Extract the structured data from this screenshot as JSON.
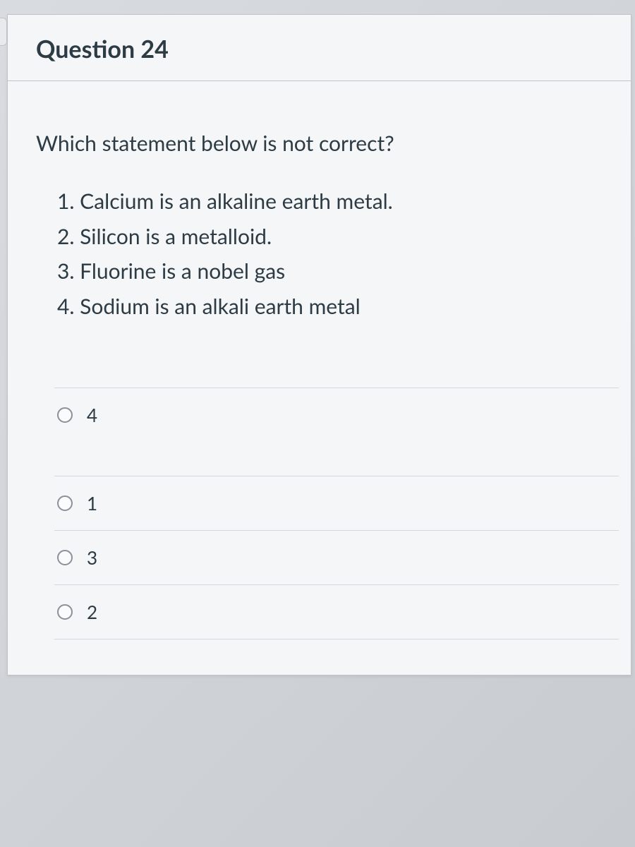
{
  "header": {
    "title": "Question 24"
  },
  "prompt": "Which statement below is not correct?",
  "statements": [
    "1. Calcium is an alkaline earth metal.",
    "2. Silicon is a metalloid.",
    "3. Fluorine is a nobel gas",
    "4. Sodium is an alkali earth metal"
  ],
  "options": [
    {
      "label": "4"
    },
    {
      "label": "1"
    },
    {
      "label": "3"
    },
    {
      "label": "2"
    }
  ],
  "colors": {
    "text": "#2d3b45",
    "border": "#c0c4c8",
    "divider": "#d4d8dc",
    "cardBg": "#f5f6f7",
    "radioBorder": "#8a9199"
  }
}
